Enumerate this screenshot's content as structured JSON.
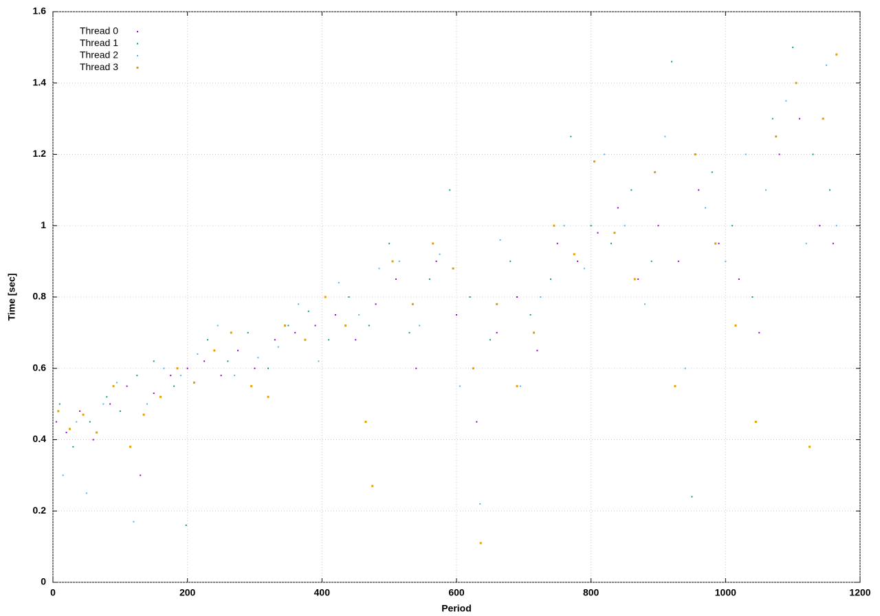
{
  "chart_data": {
    "type": "scatter",
    "xlabel": "Period",
    "ylabel": "Time [sec]",
    "xlim": [
      0,
      1200
    ],
    "xticks": [
      0,
      200,
      400,
      600,
      800,
      1000,
      1200
    ],
    "ylim": [
      0,
      1.6
    ],
    "yticks": [
      0,
      0.2,
      0.4,
      0.6,
      0.8,
      1,
      1.2,
      1.4,
      1.6
    ],
    "grid": true,
    "legend": "top-left",
    "series": [
      {
        "name": "Thread 0",
        "color": "#9400d3",
        "x": [
          5,
          20,
          40,
          60,
          85,
          110,
          130,
          150,
          175,
          200,
          225,
          250,
          275,
          300,
          330,
          360,
          390,
          420,
          450,
          480,
          510,
          540,
          570,
          600,
          630,
          660,
          690,
          720,
          750,
          780,
          810,
          840,
          870,
          900,
          930,
          960,
          990,
          1020,
          1050,
          1080,
          1110,
          1140,
          1160
        ],
        "values": [
          0.45,
          0.42,
          0.48,
          0.4,
          0.5,
          0.55,
          0.3,
          0.53,
          0.58,
          0.6,
          0.62,
          0.58,
          0.65,
          0.6,
          0.68,
          0.7,
          0.72,
          0.75,
          0.68,
          0.78,
          0.85,
          0.6,
          0.9,
          0.75,
          0.45,
          0.7,
          0.8,
          0.65,
          0.95,
          0.9,
          0.98,
          1.05,
          0.85,
          1.0,
          0.9,
          1.1,
          0.95,
          0.85,
          0.7,
          1.2,
          1.3,
          1.0,
          0.95
        ]
      },
      {
        "name": "Thread 1",
        "color": "#009e73",
        "x": [
          10,
          30,
          55,
          80,
          100,
          125,
          150,
          180,
          198,
          230,
          260,
          290,
          320,
          350,
          380,
          410,
          440,
          470,
          500,
          530,
          560,
          590,
          620,
          650,
          680,
          710,
          740,
          770,
          800,
          830,
          860,
          890,
          920,
          950,
          980,
          1010,
          1040,
          1070,
          1100,
          1130,
          1155
        ],
        "values": [
          0.5,
          0.38,
          0.45,
          0.52,
          0.48,
          0.58,
          0.62,
          0.55,
          0.16,
          0.68,
          0.62,
          0.7,
          0.6,
          0.72,
          0.76,
          0.68,
          0.8,
          0.72,
          0.95,
          0.7,
          0.85,
          1.1,
          0.8,
          0.68,
          0.9,
          0.75,
          0.85,
          1.25,
          1.0,
          0.95,
          1.1,
          0.9,
          1.46,
          0.24,
          1.15,
          1.0,
          0.8,
          1.3,
          1.5,
          1.2,
          1.1
        ]
      },
      {
        "name": "Thread 2",
        "color": "#56b4e9",
        "x": [
          15,
          35,
          50,
          75,
          95,
          120,
          140,
          165,
          190,
          215,
          245,
          270,
          305,
          335,
          365,
          395,
          425,
          455,
          485,
          515,
          545,
          575,
          605,
          635,
          665,
          695,
          725,
          760,
          790,
          820,
          850,
          880,
          910,
          940,
          970,
          1000,
          1030,
          1060,
          1090,
          1120,
          1150,
          1165
        ],
        "values": [
          0.3,
          0.45,
          0.25,
          0.5,
          0.56,
          0.17,
          0.5,
          0.6,
          0.58,
          0.64,
          0.72,
          0.58,
          0.63,
          0.66,
          0.78,
          0.62,
          0.84,
          0.75,
          0.88,
          0.9,
          0.72,
          0.92,
          0.55,
          0.22,
          0.96,
          0.55,
          0.8,
          1.0,
          0.88,
          1.2,
          1.0,
          0.78,
          1.25,
          0.6,
          1.05,
          0.9,
          1.2,
          1.1,
          1.35,
          0.95,
          1.45,
          1.0
        ]
      },
      {
        "name": "Thread 3",
        "color": "#e69f00",
        "x": [
          8,
          25,
          45,
          65,
          90,
          115,
          135,
          160,
          185,
          210,
          240,
          265,
          295,
          320,
          345,
          375,
          405,
          435,
          465,
          475,
          505,
          535,
          565,
          595,
          625,
          636,
          660,
          690,
          715,
          745,
          775,
          805,
          835,
          865,
          895,
          925,
          955,
          985,
          1015,
          1045,
          1075,
          1105,
          1125,
          1145,
          1165
        ],
        "values": [
          0.48,
          0.43,
          0.47,
          0.42,
          0.55,
          0.38,
          0.47,
          0.52,
          0.6,
          0.56,
          0.65,
          0.7,
          0.55,
          0.52,
          0.72,
          0.68,
          0.8,
          0.72,
          0.45,
          0.27,
          0.9,
          0.78,
          0.95,
          0.88,
          0.6,
          0.11,
          0.78,
          0.55,
          0.7,
          1.0,
          0.92,
          1.18,
          0.98,
          0.85,
          1.15,
          0.55,
          1.2,
          0.95,
          0.72,
          0.45,
          1.25,
          1.4,
          0.38,
          1.3,
          1.48
        ]
      }
    ]
  }
}
